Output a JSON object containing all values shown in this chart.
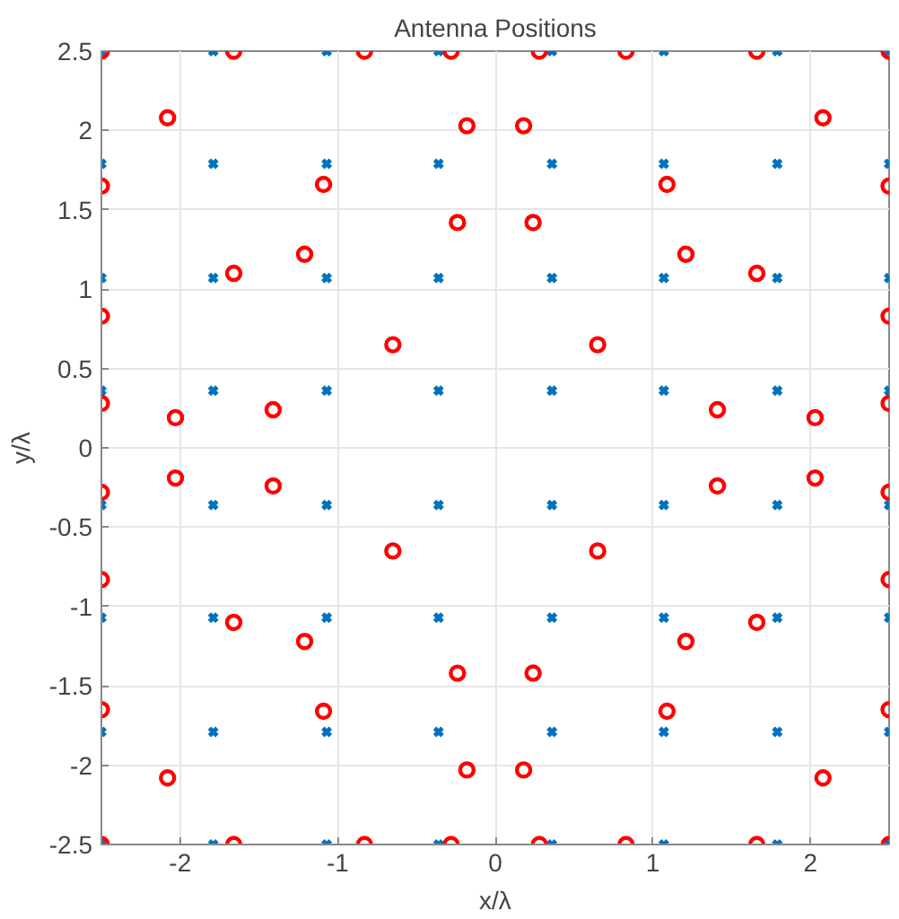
{
  "chart_data": {
    "type": "scatter",
    "title": "Antenna Positions",
    "xlabel": "x/λ",
    "ylabel": "y/λ",
    "xlim": [
      -2.5,
      2.5
    ],
    "ylim": [
      -2.5,
      2.5
    ],
    "xticks": [
      -2,
      -1,
      0,
      1,
      2
    ],
    "yticks": [
      -2.5,
      -2,
      -1.5,
      -1,
      -0.5,
      0,
      0.5,
      1,
      1.5,
      2,
      2.5
    ],
    "grid": true,
    "series": [
      {
        "color": "#0072bd",
        "marker": "cross",
        "x": [
          -2.5,
          -2.5,
          -2.5,
          -2.5,
          -2.5,
          -2.5,
          -2.5,
          -2.5,
          -1.79,
          -1.79,
          -1.79,
          -1.79,
          -1.79,
          -1.79,
          -1.79,
          -1.79,
          -1.07,
          -1.07,
          -1.07,
          -1.07,
          -1.07,
          -1.07,
          -1.07,
          -1.07,
          -0.36,
          -0.36,
          -0.36,
          -0.36,
          -0.36,
          -0.36,
          -0.36,
          -0.36,
          0.36,
          0.36,
          0.36,
          0.36,
          0.36,
          0.36,
          0.36,
          0.36,
          1.07,
          1.07,
          1.07,
          1.07,
          1.07,
          1.07,
          1.07,
          1.07,
          1.79,
          1.79,
          1.79,
          1.79,
          1.79,
          1.79,
          1.79,
          1.79,
          2.5,
          2.5,
          2.5,
          2.5,
          2.5,
          2.5,
          2.5,
          2.5
        ],
        "values": [
          -2.5,
          -1.79,
          -1.07,
          -0.36,
          0.36,
          1.07,
          1.79,
          2.5,
          -2.5,
          -1.79,
          -1.07,
          -0.36,
          0.36,
          1.07,
          1.79,
          2.5,
          -2.5,
          -1.79,
          -1.07,
          -0.36,
          0.36,
          1.07,
          1.79,
          2.5,
          -2.5,
          -1.79,
          -1.07,
          -0.36,
          0.36,
          1.07,
          1.79,
          2.5,
          -2.5,
          -1.79,
          -1.07,
          -0.36,
          0.36,
          1.07,
          1.79,
          2.5,
          -2.5,
          -1.79,
          -1.07,
          -0.36,
          0.36,
          1.07,
          1.79,
          2.5,
          -2.5,
          -1.79,
          -1.07,
          -0.36,
          0.36,
          1.07,
          1.79,
          2.5,
          -2.5,
          -1.79,
          -1.07,
          -0.36,
          0.36,
          1.07,
          1.79,
          2.5
        ]
      },
      {
        "color": "#ff0000",
        "marker": "circle",
        "x": [
          -2.5,
          2.5,
          -2.5,
          2.5,
          -1.66,
          -0.83,
          -0.28,
          0.28,
          0.83,
          1.66,
          -1.66,
          -0.83,
          -0.28,
          0.28,
          0.83,
          1.66,
          -2.5,
          -2.5,
          -2.5,
          -2.5,
          -2.5,
          -2.5,
          2.5,
          2.5,
          2.5,
          2.5,
          2.5,
          2.5,
          -2.08,
          -1.09,
          -1.66,
          -1.21,
          -0.65,
          -2.03,
          -1.41,
          -0.24,
          -0.18,
          2.08,
          1.09,
          1.66,
          1.21,
          0.65,
          2.03,
          1.41,
          0.24,
          0.18,
          -2.08,
          -1.09,
          -1.66,
          -1.21,
          -0.65,
          -2.03,
          -1.41,
          -0.24,
          -0.18,
          2.08,
          1.09,
          1.66,
          1.21,
          0.65,
          2.03,
          1.41,
          0.24,
          0.18
        ],
        "values": [
          2.5,
          2.5,
          -2.5,
          -2.5,
          2.5,
          2.5,
          2.5,
          2.5,
          2.5,
          2.5,
          -2.5,
          -2.5,
          -2.5,
          -2.5,
          -2.5,
          -2.5,
          1.65,
          0.83,
          0.28,
          -0.28,
          -0.83,
          -1.65,
          1.65,
          0.83,
          0.28,
          -0.28,
          -0.83,
          -1.65,
          2.08,
          1.66,
          1.1,
          1.22,
          0.65,
          0.19,
          0.24,
          1.42,
          2.03,
          2.08,
          1.66,
          1.1,
          1.22,
          0.65,
          0.19,
          0.24,
          1.42,
          2.03,
          -2.08,
          -1.66,
          -1.1,
          -1.22,
          -0.65,
          -0.19,
          -0.24,
          -1.42,
          -2.03,
          -2.08,
          -1.66,
          -1.1,
          -1.22,
          -0.65,
          -0.19,
          -0.24,
          -1.42,
          -2.03
        ]
      }
    ]
  }
}
